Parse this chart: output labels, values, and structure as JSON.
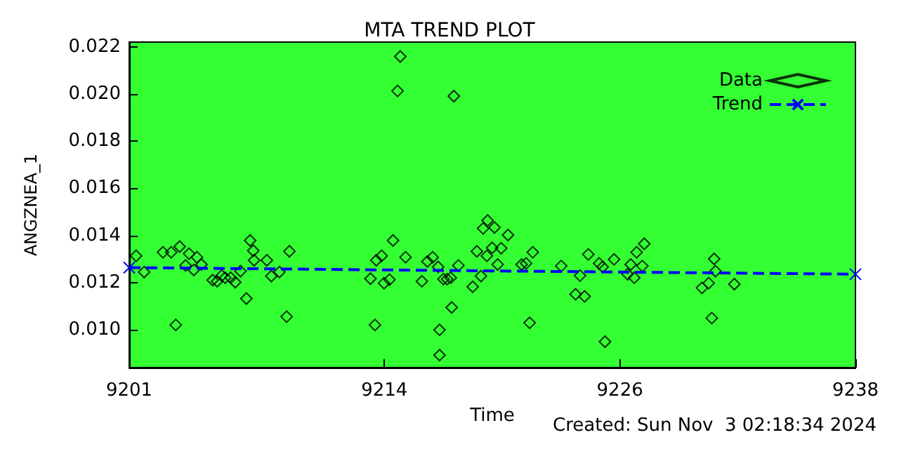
{
  "chart_data": {
    "type": "scatter",
    "title": "MTA TREND PLOT",
    "xlabel": "Time",
    "ylabel": "ANGZNEA_1",
    "annotations": [
      "Created: Sun Nov  3 02:18:34 2024"
    ],
    "xlim": [
      9201,
      9238
    ],
    "xticks": [
      9201,
      9214,
      9226,
      9238
    ],
    "ylim": [
      0.0084,
      0.0222
    ],
    "yticks": [
      {
        "value": 0.01,
        "label": "0.010"
      },
      {
        "value": 0.012,
        "label": "0.012"
      },
      {
        "value": 0.014,
        "label": "0.014"
      },
      {
        "value": 0.016,
        "label": "0.016"
      },
      {
        "value": 0.018,
        "label": "0.018"
      },
      {
        "value": 0.02,
        "label": "0.020"
      },
      {
        "value": 0.022,
        "label": "0.022"
      }
    ],
    "grid": false,
    "legend": "top right",
    "series": [
      {
        "name": "Data",
        "marker": "diamond",
        "color": "#000000",
        "x": [
          9201.35,
          9201.76,
          9202.72,
          9203.14,
          9203.57,
          9203.37,
          9203.87,
          9204.05,
          9204.29,
          9204.45,
          9204.68,
          9205.25,
          9205.48,
          9205.71,
          9205.89,
          9206.17,
          9206.4,
          9206.67,
          9206.97,
          9207.16,
          9207.32,
          9207.36,
          9208.01,
          9208.24,
          9208.65,
          9209.02,
          9209.16,
          9213.29,
          9213.52,
          9213.59,
          9213.86,
          9213.98,
          9214.26,
          9214.44,
          9214.81,
          9214.67,
          9215.08,
          9215.91,
          9216.19,
          9216.46,
          9216.74,
          9216.81,
          9216.81,
          9217.01,
          9217.2,
          9217.38,
          9217.43,
          9217.54,
          9217.77,
          9218.5,
          9218.71,
          9218.92,
          9219.22,
          9219.26,
          9219.03,
          9219.61,
          9219.49,
          9219.77,
          9220.3,
          9219.95,
          9221.56,
          9221.4,
          9220.99,
          9221.22,
          9223.01,
          9223.74,
          9224.2,
          9223.97,
          9224.39,
          9224.94,
          9225.12,
          9225.24,
          9225.7,
          9226.39,
          9226.55,
          9226.73,
          9226.85,
          9227.24,
          9227.14,
          9230.18,
          9230.52,
          9230.68,
          9230.8,
          9230.87,
          9231.83
        ],
        "values": [
          0.01314,
          0.01245,
          0.01329,
          0.01329,
          0.01353,
          0.01021,
          0.01273,
          0.01323,
          0.01254,
          0.01308,
          0.01277,
          0.01211,
          0.01206,
          0.0123,
          0.01221,
          0.01221,
          0.01202,
          0.01249,
          0.01133,
          0.01379,
          0.01336,
          0.01295,
          0.01295,
          0.01228,
          0.01245,
          0.01056,
          0.01333,
          0.01217,
          0.01021,
          0.01295,
          0.01314,
          0.01198,
          0.01213,
          0.01379,
          0.02159,
          0.02013,
          0.01308,
          0.01206,
          0.0129,
          0.01308,
          0.01267,
          0.01,
          0.00893,
          0.01215,
          0.01215,
          0.01221,
          0.01095,
          0.01991,
          0.01273,
          0.01183,
          0.01333,
          0.01228,
          0.01314,
          0.01464,
          0.0143,
          0.01434,
          0.01348,
          0.01277,
          0.01402,
          0.01346,
          0.01329,
          0.0103,
          0.01277,
          0.01282,
          0.01271,
          0.01151,
          0.01142,
          0.0123,
          0.0132,
          0.01282,
          0.01267,
          0.0095,
          0.01299,
          0.01236,
          0.01277,
          0.01221,
          0.01329,
          0.01365,
          0.01271,
          0.01178,
          0.01198,
          0.0105,
          0.01301,
          0.01249,
          0.01194
        ]
      },
      {
        "name": "Trend",
        "type": "line",
        "marker": "cross",
        "line_style": "dashed",
        "color": "#0000ff",
        "x": [
          9201,
          9238
        ],
        "values": [
          0.01264,
          0.01236
        ]
      }
    ]
  }
}
